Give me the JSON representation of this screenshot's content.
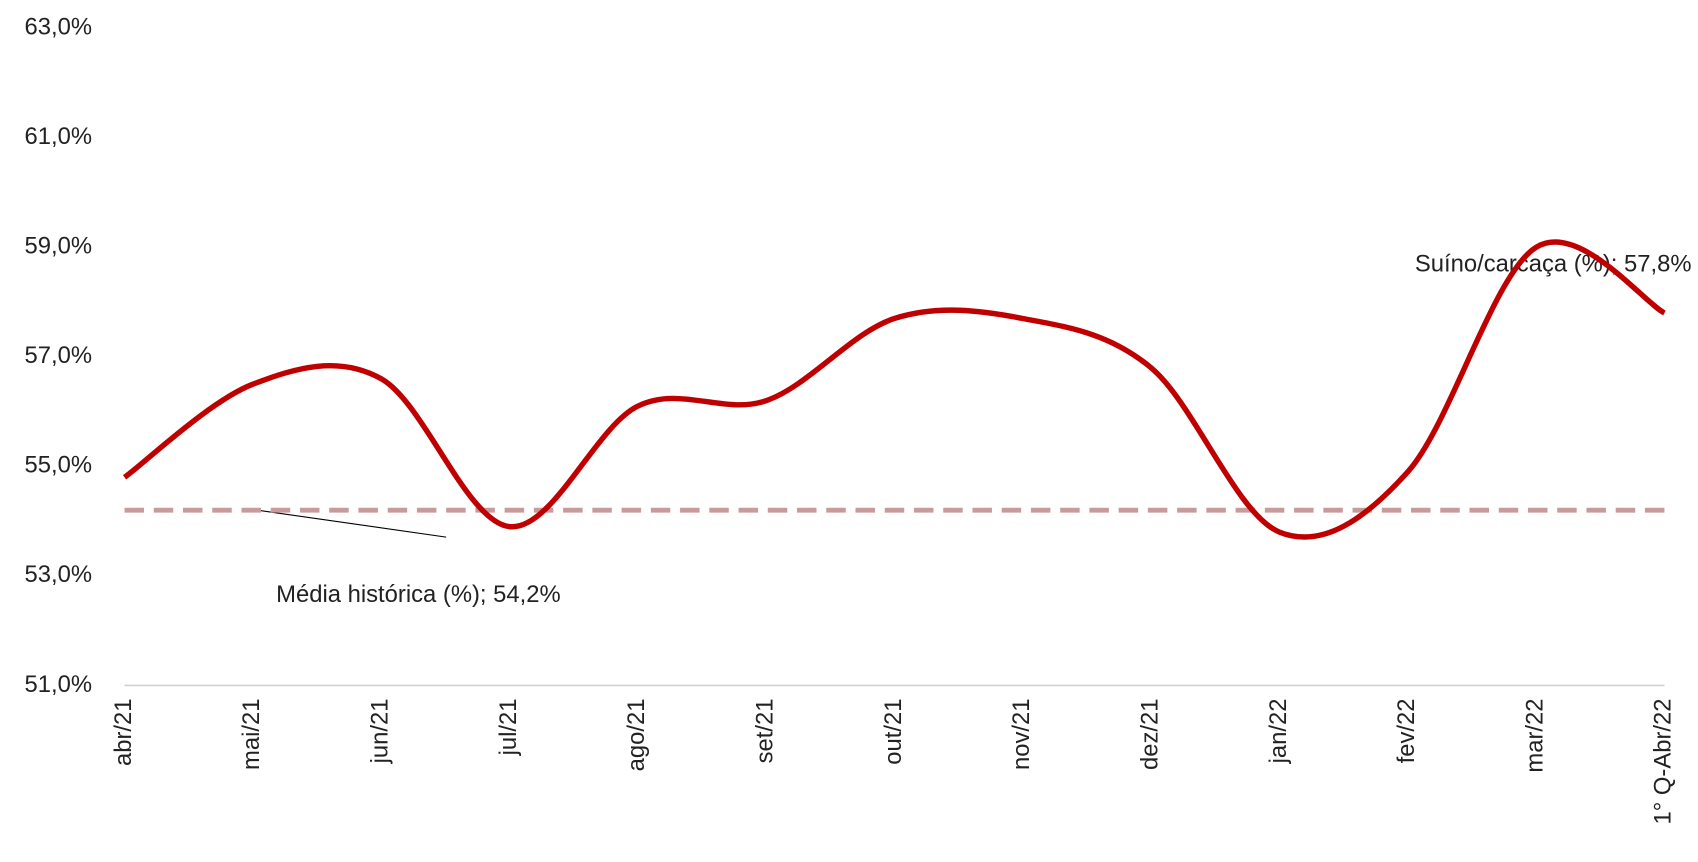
{
  "chart_data": {
    "type": "line",
    "categories": [
      "abr/21",
      "mai/21",
      "jun/21",
      "jul/21",
      "ago/21",
      "set/21",
      "out/21",
      "nov/21",
      "dez/21",
      "jan/22",
      "fev/22",
      "mar/22",
      "1° Q-Abr/22"
    ],
    "series": [
      {
        "name": "Suíno/carcaça (%)",
        "color": "#c00000",
        "dashed": false,
        "values": [
          54.8,
          56.5,
          56.6,
          53.9,
          56.1,
          56.2,
          57.7,
          57.7,
          56.8,
          53.8,
          54.9,
          59.0,
          57.8
        ]
      },
      {
        "name": "Média histórica (%)",
        "color": "#c99a9a",
        "dashed": true,
        "values": [
          54.2,
          54.2,
          54.2,
          54.2,
          54.2,
          54.2,
          54.2,
          54.2,
          54.2,
          54.2,
          54.2,
          54.2,
          54.2
        ]
      }
    ],
    "ylim": [
      51,
      63
    ],
    "yticks": [
      {
        "value": 51,
        "label": "51,0%"
      },
      {
        "value": 53,
        "label": "53,0%"
      },
      {
        "value": 55,
        "label": "55,0%"
      },
      {
        "value": 57,
        "label": "57,0%"
      },
      {
        "value": 59,
        "label": "59,0%"
      },
      {
        "value": 61,
        "label": "61,0%"
      },
      {
        "value": 63,
        "label": "63,0%"
      }
    ],
    "annotations": [
      "Suíno/carcaça (%); 57,8%",
      "Média histórica (%); 54,2%"
    ],
    "grid": false
  }
}
